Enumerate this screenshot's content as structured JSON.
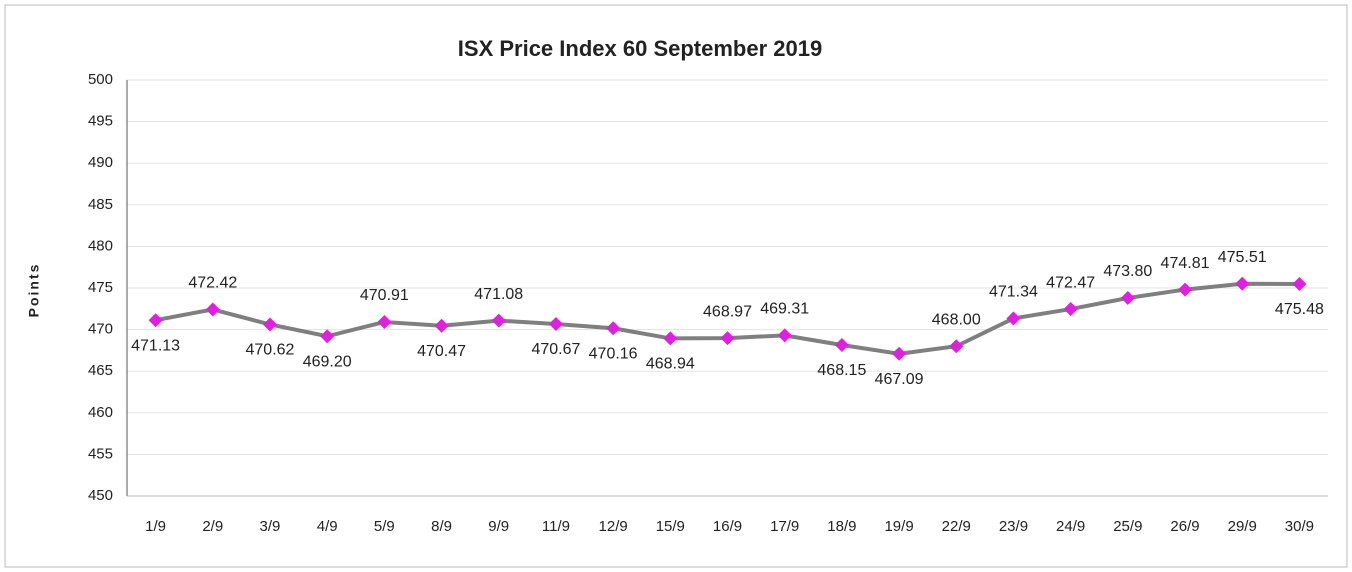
{
  "chart_data": {
    "type": "line",
    "title": "ISX Price Index 60 September 2019",
    "y_label": "Points",
    "categories": [
      "1/9",
      "2/9",
      "3/9",
      "4/9",
      "5/9",
      "8/9",
      "9/9",
      "11/9",
      "12/9",
      "15/9",
      "16/9",
      "17/9",
      "18/9",
      "19/9",
      "22/9",
      "23/9",
      "24/9",
      "25/9",
      "26/9",
      "29/9",
      "30/9"
    ],
    "series": [
      {
        "name": "ISX Price Index 60",
        "color": "#7f7f7f",
        "marker_color": "#e020e0",
        "values": [
          471.13,
          472.42,
          470.62,
          469.2,
          470.91,
          470.47,
          471.08,
          470.67,
          470.16,
          468.94,
          468.97,
          469.31,
          468.15,
          467.09,
          468.0,
          471.34,
          472.47,
          473.8,
          474.81,
          475.51,
          475.48
        ],
        "value_labels": [
          "471.13",
          "472.42",
          "470.62",
          "469.20",
          "470.91",
          "470.47",
          "471.08",
          "470.67",
          "470.16",
          "468.94",
          "468.97",
          "469.31",
          "468.15",
          "467.09",
          "468.00",
          "471.34",
          "472.47",
          "473.80",
          "474.81",
          "475.51",
          "475.48"
        ]
      }
    ],
    "ylim": [
      450,
      500
    ],
    "yticks": [
      450,
      455,
      460,
      465,
      470,
      475,
      480,
      485,
      490,
      495,
      500
    ],
    "grid": true
  }
}
